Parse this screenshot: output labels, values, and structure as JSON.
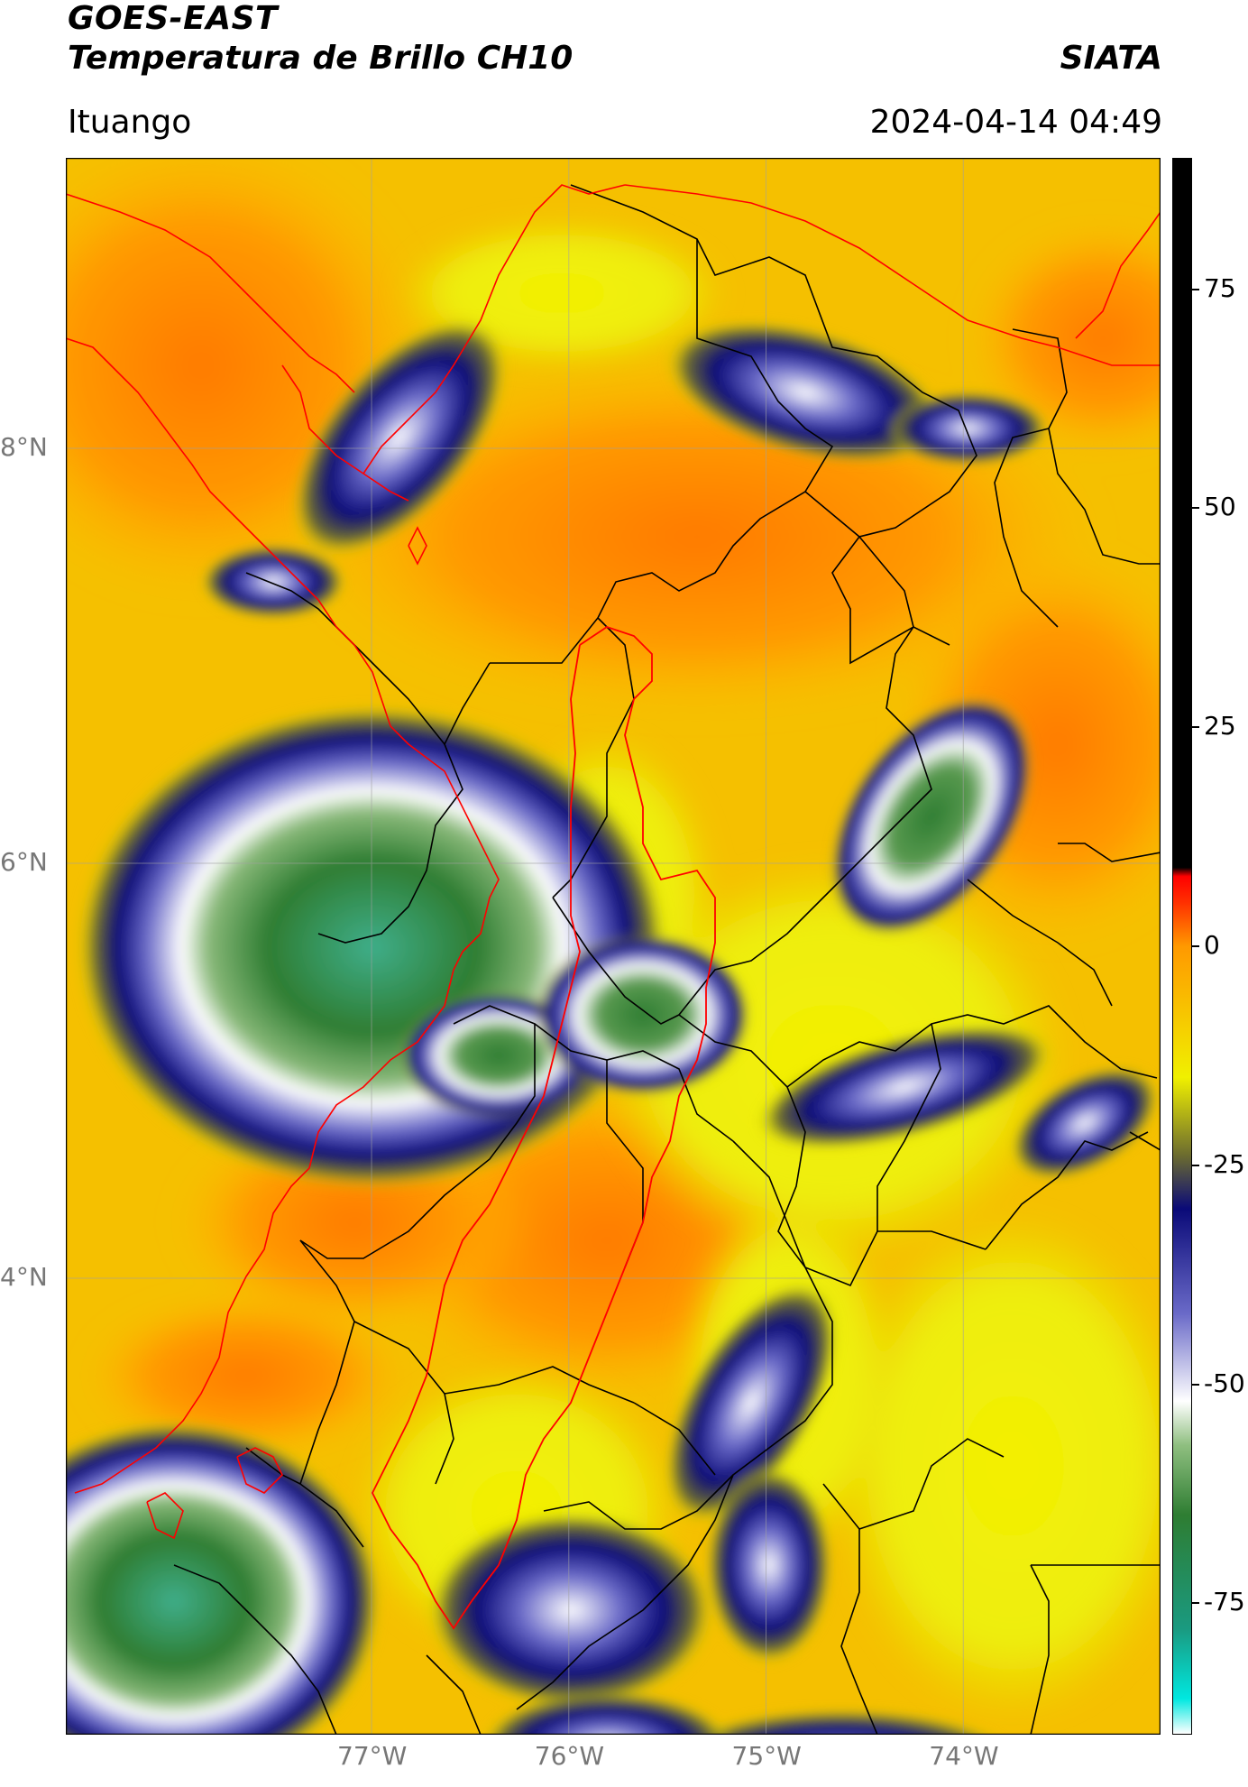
{
  "header": {
    "satellite": "GOES-EAST",
    "product": "Temperatura de Brillo CH10",
    "brand": "SIATA",
    "region": "Ituango",
    "timestamp": "2024-04-14 04:49"
  },
  "map": {
    "lat_range": [
      1.8,
      9.4
    ],
    "lon_range": [
      -78.55,
      -73.0
    ],
    "lat_ticks": [
      {
        "value": 8,
        "label": "8°N"
      },
      {
        "value": 6,
        "label": "6°N"
      },
      {
        "value": 4,
        "label": "4°N"
      }
    ],
    "lon_ticks": [
      {
        "value": -77,
        "label": "77°W"
      },
      {
        "value": -76,
        "label": "76°W"
      },
      {
        "value": -75,
        "label": "75°W"
      },
      {
        "value": -74,
        "label": "74°W"
      }
    ],
    "gridlines": true,
    "colors": {
      "background_warm": "#f7b300",
      "border_country": "#ff0000",
      "border_department": "#000000",
      "gridline": "#a0a0a0"
    }
  },
  "colorbar": {
    "range": [
      -90,
      90
    ],
    "ticks": [
      75,
      50,
      25,
      0,
      -25,
      -50,
      -75
    ],
    "tick_labels": [
      "75",
      "50",
      "25",
      "0",
      "-25",
      "-50",
      "-75"
    ],
    "stops": [
      {
        "value": -90,
        "color": "#ffffff"
      },
      {
        "value": -86,
        "color": "#00e8e0"
      },
      {
        "value": -78,
        "color": "#1a9a80"
      },
      {
        "value": -65,
        "color": "#2e7d32"
      },
      {
        "value": -57,
        "color": "#8fbf80"
      },
      {
        "value": -52,
        "color": "#ffffff"
      },
      {
        "value": -42,
        "color": "#6a6ac8"
      },
      {
        "value": -30,
        "color": "#0a0a78"
      },
      {
        "value": -24,
        "color": "#6a6a30"
      },
      {
        "value": -15,
        "color": "#f0f000"
      },
      {
        "value": 0,
        "color": "#ff9900"
      },
      {
        "value": 5,
        "color": "#ff3000"
      },
      {
        "value": 8,
        "color": "#ff0000"
      },
      {
        "value": 9,
        "color": "#000000"
      },
      {
        "value": 90,
        "color": "#000000"
      }
    ]
  }
}
